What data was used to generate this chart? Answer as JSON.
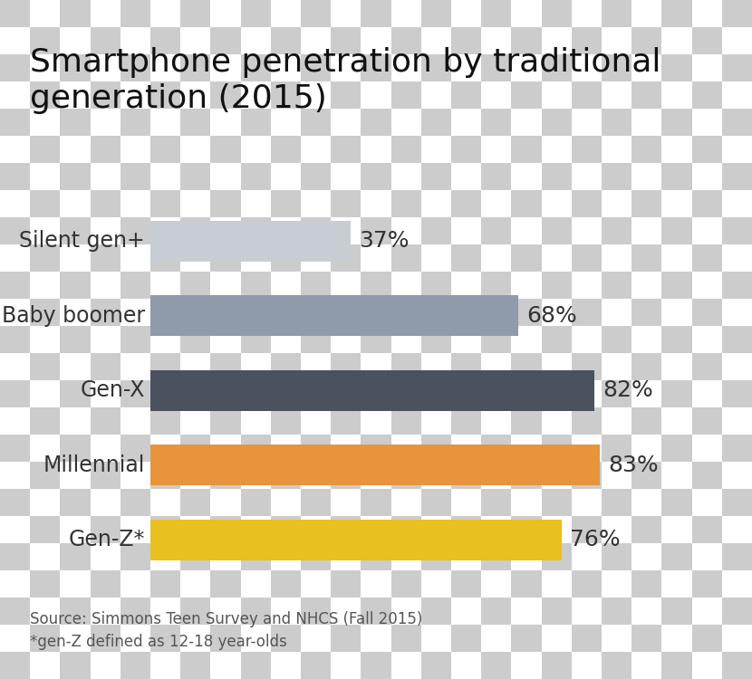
{
  "title": "Smartphone penetration by traditional\ngeneration (2015)",
  "categories": [
    "Silent gen+",
    "Baby boomer",
    "Gen-X",
    "Millennial",
    "Gen-Z*"
  ],
  "values": [
    37,
    68,
    82,
    83,
    76
  ],
  "bar_colors": [
    "#c8cdd4",
    "#8f9aaa",
    "#4a5260",
    "#e8943a",
    "#e8c020"
  ],
  "label_texts": [
    "37%",
    "68%",
    "82%",
    "83%",
    "76%"
  ],
  "source_text": "Source: Simmons Teen Survey and NHCS (Fall 2015)\n*gen-Z defined as 12-18 year-olds",
  "background_color": "#ffffff",
  "title_fontsize": 26,
  "label_fontsize": 18,
  "category_fontsize": 17,
  "source_fontsize": 12,
  "xlim": [
    0,
    100
  ],
  "bar_height": 0.55
}
